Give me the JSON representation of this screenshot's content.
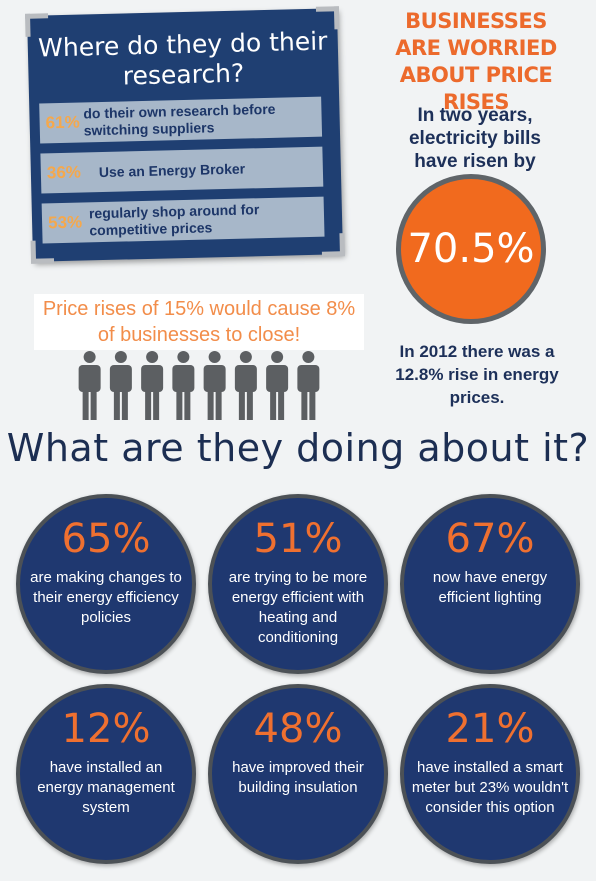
{
  "research": {
    "title": "Where do they do their research?",
    "rows": [
      {
        "pct": "61%",
        "text": "do their own research before switching suppliers"
      },
      {
        "pct": "36%",
        "text": "Use an Energy Broker"
      },
      {
        "pct": "53%",
        "text": "regularly shop around for competitive prices"
      }
    ]
  },
  "worried": {
    "title": "BUSINESSES ARE WORRIED ABOUT PRICE RISES",
    "bills_text": "In two years, electricity bills have risen by",
    "bills_value": "70.5%",
    "note_2012": "In 2012 there was a 12.8% rise in energy prices."
  },
  "rises": {
    "text": "Price rises of 15% would cause 8% of businesses to close!",
    "people_count": 8
  },
  "doing": {
    "title": "What are they doing about it?",
    "stats": [
      {
        "pct": "65%",
        "desc": "are making changes to their energy efficiency policies"
      },
      {
        "pct": "51%",
        "desc": "are trying to be more energy efficient with heating and conditioning"
      },
      {
        "pct": "67%",
        "desc": "now have energy efficient lighting"
      },
      {
        "pct": "12%",
        "desc": "have installed an energy management system"
      },
      {
        "pct": "48%",
        "desc": "have improved their building insulation"
      },
      {
        "pct": "21%",
        "desc": "have installed a smart meter but 23% wouldn't consider this option"
      }
    ]
  },
  "colors": {
    "navy": "#1f3870",
    "orange": "#f16a1e",
    "light_blue_row": "#a7b7c9"
  }
}
